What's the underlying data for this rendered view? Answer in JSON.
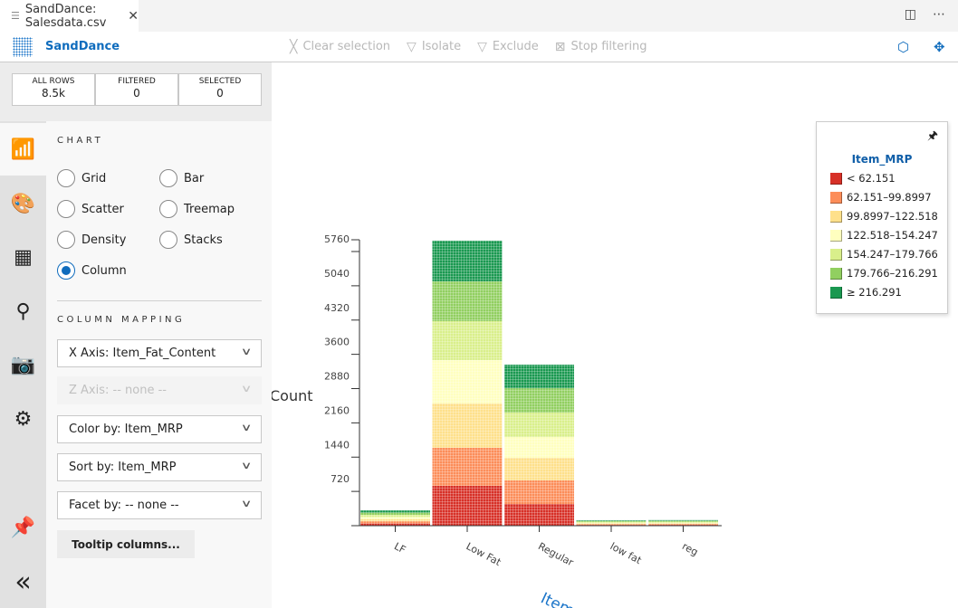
{
  "tab": {
    "title": "SandDance: Salesdata.csv"
  },
  "toolbar": {
    "brand": "SandDance",
    "clear_selection": "Clear selection",
    "isolate": "Isolate",
    "exclude": "Exclude",
    "stop_filtering": "Stop filtering"
  },
  "stats": [
    {
      "label": "ALL ROWS",
      "value": "8.5k"
    },
    {
      "label": "FILTERED",
      "value": "0"
    },
    {
      "label": "SELECTED",
      "value": "0"
    }
  ],
  "panel": {
    "chart_header": "CHART",
    "chart_types": [
      "Grid",
      "Bar",
      "Scatter",
      "Treemap",
      "Density",
      "Stacks",
      "Column"
    ],
    "selected_chart": "Column",
    "mapping_header": "COLUMN MAPPING",
    "x_axis": "X Axis: Item_Fat_Content",
    "z_axis": "Z Axis: -- none --",
    "color_by": "Color by: Item_MRP",
    "sort_by": "Sort by: Item_MRP",
    "facet_by": "Facet by: -- none --",
    "tooltip_button": "Tooltip columns..."
  },
  "legend": {
    "title": "Item_MRP",
    "items": [
      {
        "label": "< 62.151",
        "color": "#d73027"
      },
      {
        "label": "62.151–99.8997",
        "color": "#fc8d59"
      },
      {
        "label": "99.8997–122.518",
        "color": "#fee08b"
      },
      {
        "label": "122.518–154.247",
        "color": "#ffffbf"
      },
      {
        "label": "154.247–179.766",
        "color": "#d9ef8b"
      },
      {
        "label": "179.766–216.291",
        "color": "#91cf60"
      },
      {
        "label": "≥ 216.291",
        "color": "#1a9850"
      }
    ]
  },
  "chart_data": {
    "type": "bar",
    "stacked": true,
    "ylabel": "Count",
    "xlabel": "Item",
    "yticks": [
      720,
      1440,
      2160,
      2880,
      3600,
      4320,
      5040,
      5760
    ],
    "ylim": [
      0,
      6000
    ],
    "categories": [
      "LF",
      "Low Fat",
      "Regular",
      "low fat",
      "reg"
    ],
    "series": [
      {
        "name": "< 62.151",
        "values": [
          46,
          837,
          456,
          16,
          17
        ]
      },
      {
        "name": "62.151–99.8997",
        "values": [
          46,
          800,
          494,
          16,
          17
        ]
      },
      {
        "name": "99.8997–122.518",
        "values": [
          46,
          930,
          475,
          16,
          17
        ]
      },
      {
        "name": "122.518–154.247",
        "values": [
          45,
          913,
          437,
          17,
          16
        ]
      },
      {
        "name": "154.247–179.766",
        "values": [
          45,
          817,
          513,
          17,
          17
        ]
      },
      {
        "name": "179.766–216.291",
        "values": [
          46,
          837,
          513,
          16,
          16
        ]
      },
      {
        "name": "≥ 216.291",
        "values": [
          46,
          855,
          494,
          17,
          17
        ]
      }
    ]
  }
}
